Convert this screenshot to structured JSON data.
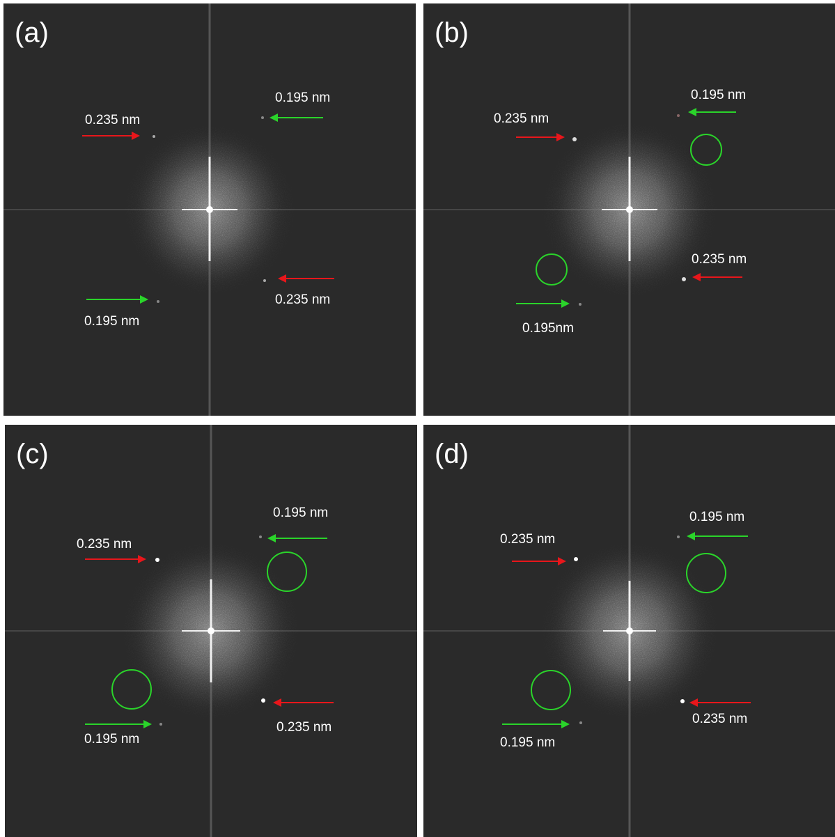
{
  "panels": [
    {
      "label": "(a)",
      "annotations": {
        "upper_left": "0.235 nm",
        "upper_right": "0.195 nm",
        "lower_right": "0.235 nm",
        "lower_left": "0.195 nm"
      },
      "circles_shown": false
    },
    {
      "label": "(b)",
      "annotations": {
        "upper_left": "0.235 nm",
        "upper_right": "0.195 nm",
        "lower_right": "0.235 nm",
        "lower_left": "0.195nm"
      },
      "circles_shown": true
    },
    {
      "label": "(c)",
      "annotations": {
        "upper_left": "0.235 nm",
        "upper_right": "0.195 nm",
        "lower_right": "0.235 nm",
        "lower_left": "0.195 nm"
      },
      "circles_shown": true
    },
    {
      "label": "(d)",
      "annotations": {
        "upper_left": "0.235 nm",
        "upper_right": "0.195 nm",
        "lower_right": "0.235 nm",
        "lower_left": "0.195 nm"
      },
      "circles_shown": true
    }
  ],
  "colors": {
    "background": "#2a2a2a",
    "arrow_0235": "#e8161b",
    "arrow_0195": "#2ad42a",
    "circle": "#2ad42a",
    "text": "#ffffff"
  }
}
